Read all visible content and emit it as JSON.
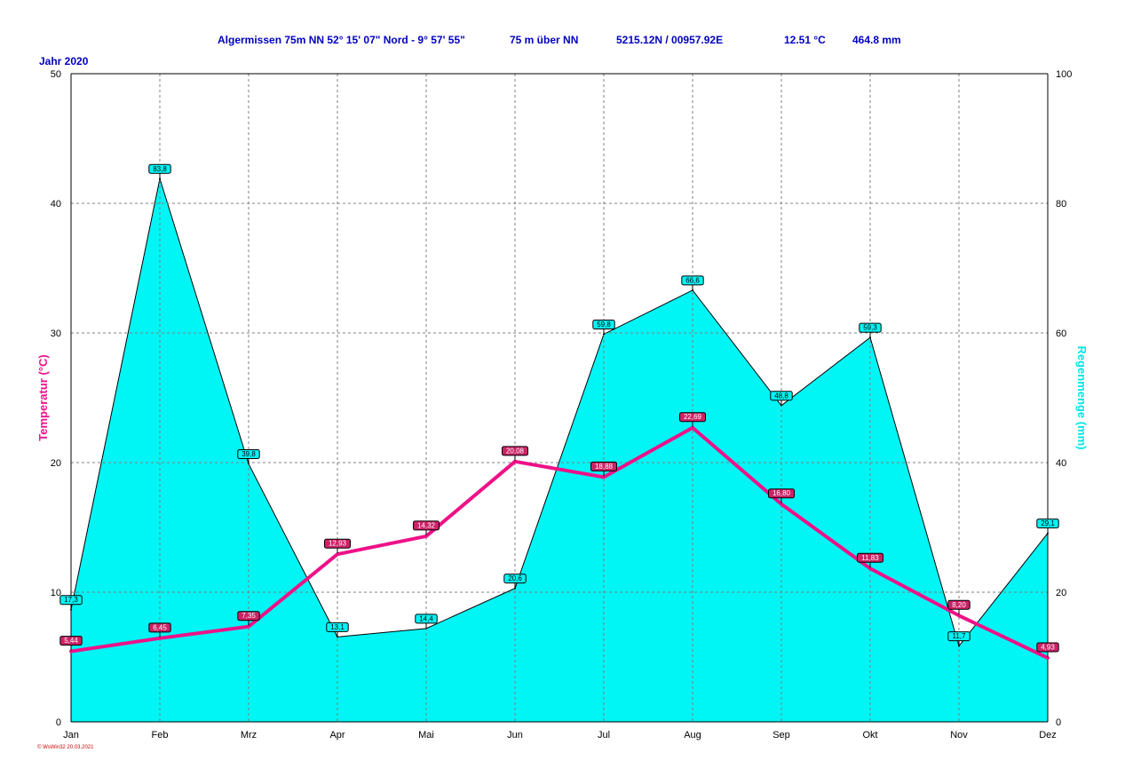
{
  "header": {
    "station": "Algermissen  75m NN  52° 15' 07\" Nord - 9° 57' 55\"",
    "altitude": "75 m über NN",
    "coords": "5215.12N / 00957.92E",
    "mean_temp": "12.51 °C",
    "total_rain": "464.8 mm",
    "year": "Jahr  2020"
  },
  "footer": "© WsWin32  20.03.2021",
  "colors": {
    "rain_fill": "#00f5f5",
    "temp_line": "#ee1188",
    "temp_label_bg": "#cc2266",
    "title_text": "#0000c0"
  },
  "chart_data": {
    "type": "area",
    "categories": [
      "Jan",
      "Feb",
      "Mrz",
      "Apr",
      "Mai",
      "Jun",
      "Jul",
      "Aug",
      "Sep",
      "Okt",
      "Nov",
      "Dez"
    ],
    "ylabel_left": "Temperatur  (°C)",
    "ylabel_right": "Regenmenge  (mm)",
    "ylim_left": [
      0,
      50
    ],
    "ylim_right": [
      0,
      100
    ],
    "yticks_left": [
      "0",
      "10",
      "20",
      "30",
      "40",
      "50"
    ],
    "yticks_right": [
      "0",
      "20",
      "40",
      "60",
      "80",
      "100"
    ],
    "grid": true,
    "series": [
      {
        "name": "Regenmenge",
        "axis": "right",
        "kind": "area",
        "values": [
          17.3,
          83.8,
          39.8,
          13.1,
          14.4,
          20.6,
          59.8,
          66.6,
          48.8,
          59.3,
          11.7,
          29.1
        ],
        "labels": [
          "17,3",
          "83,8",
          "39,8",
          "13,1",
          "14,4",
          "20,6",
          "59,8",
          "66,6",
          "48,8",
          "59,3",
          "11,7",
          "29,1"
        ]
      },
      {
        "name": "Temperatur",
        "axis": "left",
        "kind": "line",
        "values": [
          5.44,
          6.45,
          7.35,
          12.93,
          14.32,
          20.08,
          18.88,
          22.69,
          16.8,
          11.83,
          8.2,
          4.93
        ],
        "labels": [
          "5,44",
          "6,45",
          "7,35",
          "12,93",
          "14,32",
          "20,08",
          "18,88",
          "22,69",
          "16,80",
          "11,83",
          "8,20",
          "4,93"
        ]
      }
    ]
  }
}
